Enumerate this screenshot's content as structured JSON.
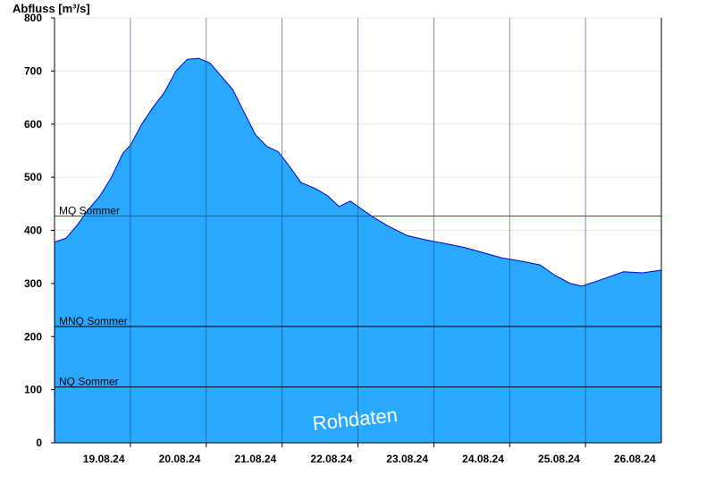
{
  "chart_data": {
    "type": "area",
    "ylabel": "Abfluss [m³/s]",
    "ylim": [
      0,
      800
    ],
    "yticks": [
      0,
      100,
      200,
      300,
      400,
      500,
      600,
      700,
      800
    ],
    "xlim_days": [
      -0.65,
      7.35
    ],
    "xticks": [
      {
        "label": "19.08.24",
        "day": 0
      },
      {
        "label": "20.08.24",
        "day": 1
      },
      {
        "label": "21.08.24",
        "day": 2
      },
      {
        "label": "22.08.24",
        "day": 3
      },
      {
        "label": "23.08.24",
        "day": 4
      },
      {
        "label": "24.08.24",
        "day": 5
      },
      {
        "label": "25.08.24",
        "day": 6
      },
      {
        "label": "26.08.24",
        "day": 7
      }
    ],
    "day_boundaries": [
      0.35,
      1.35,
      2.35,
      3.35,
      4.35,
      5.35,
      6.35
    ],
    "series": [
      {
        "points": [
          [
            -0.65,
            378
          ],
          [
            -0.5,
            385
          ],
          [
            -0.35,
            410
          ],
          [
            -0.2,
            440
          ],
          [
            -0.05,
            465
          ],
          [
            0.1,
            500
          ],
          [
            0.25,
            545
          ],
          [
            0.35,
            560
          ],
          [
            0.5,
            600
          ],
          [
            0.65,
            632
          ],
          [
            0.8,
            660
          ],
          [
            0.95,
            700
          ],
          [
            1.1,
            722
          ],
          [
            1.25,
            724
          ],
          [
            1.4,
            715
          ],
          [
            1.55,
            690
          ],
          [
            1.7,
            665
          ],
          [
            1.85,
            622
          ],
          [
            2.0,
            580
          ],
          [
            2.15,
            558
          ],
          [
            2.3,
            548
          ],
          [
            2.45,
            520
          ],
          [
            2.6,
            490
          ],
          [
            2.8,
            478
          ],
          [
            2.95,
            465
          ],
          [
            3.1,
            445
          ],
          [
            3.25,
            455
          ],
          [
            3.4,
            440
          ],
          [
            3.55,
            425
          ],
          [
            3.75,
            408
          ],
          [
            4.0,
            390
          ],
          [
            4.25,
            382
          ],
          [
            4.5,
            375
          ],
          [
            4.75,
            368
          ],
          [
            5.0,
            358
          ],
          [
            5.25,
            348
          ],
          [
            5.5,
            342
          ],
          [
            5.75,
            335
          ],
          [
            5.95,
            315
          ],
          [
            6.15,
            300
          ],
          [
            6.3,
            295
          ],
          [
            6.45,
            302
          ],
          [
            6.65,
            312
          ],
          [
            6.85,
            322
          ],
          [
            7.1,
            320
          ],
          [
            7.35,
            325
          ]
        ]
      }
    ],
    "reference_lines": [
      {
        "label": "MQ Sommer",
        "value": 427,
        "color": "#008000"
      },
      {
        "label": "MNQ Sommer",
        "value": 219,
        "color": "#000000"
      },
      {
        "label": "NQ Sommer",
        "value": 105,
        "color": "#000000"
      }
    ],
    "watermark": "Rohdaten",
    "fill_color": "#29a9ff",
    "line_color": "#0000cc",
    "grid": true
  }
}
